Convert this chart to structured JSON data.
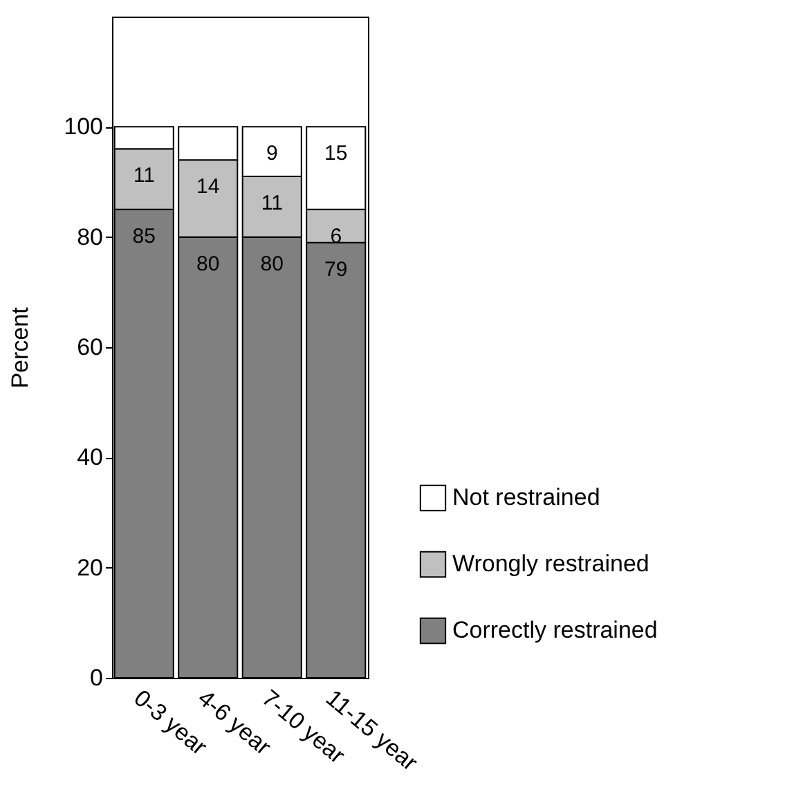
{
  "chart_data": {
    "type": "bar",
    "stacked": true,
    "ylabel": "Percent",
    "categories": [
      "0-3 year",
      "4-6 year",
      "7-10 year",
      "11-15 year"
    ],
    "ylim": [
      0,
      120
    ],
    "yticks": [
      0,
      20,
      40,
      60,
      80,
      100
    ],
    "grid": false,
    "legend": "bottom right",
    "series": [
      {
        "name": "Correctly restrained",
        "color": "#808080",
        "values": [
          85,
          80,
          80,
          79
        ],
        "value_labels": [
          "85",
          "80",
          "80",
          "79"
        ]
      },
      {
        "name": "Wrongly restrained",
        "color": "#c0c0c0",
        "values": [
          11,
          14,
          11,
          6
        ],
        "value_labels": [
          "11",
          "14",
          "11",
          "6"
        ]
      },
      {
        "name": "Not restrained",
        "color": "#ffffff",
        "values": [
          4,
          6,
          9,
          15
        ],
        "value_labels": [
          null,
          null,
          "9",
          "15"
        ]
      }
    ]
  }
}
